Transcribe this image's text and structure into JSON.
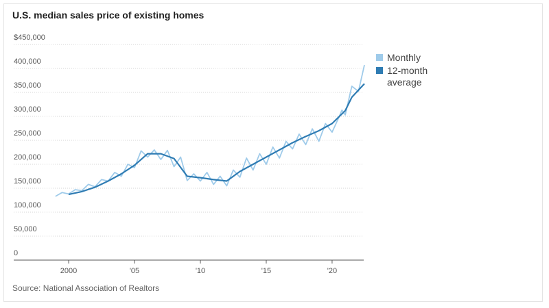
{
  "chart_data": {
    "type": "line",
    "title": "U.S. median sales price of existing homes",
    "source": "Source: National Association of Realtors",
    "series": [
      {
        "name": "Monthly",
        "color": "#9fcbea",
        "x": [
          1999.0,
          1999.5,
          2000.0,
          2000.5,
          2001.0,
          2001.5,
          2002.0,
          2002.5,
          2003.0,
          2003.5,
          2004.0,
          2004.5,
          2005.0,
          2005.5,
          2006.0,
          2006.5,
          2007.0,
          2007.5,
          2008.0,
          2008.5,
          2009.0,
          2009.5,
          2010.0,
          2010.5,
          2011.0,
          2011.5,
          2012.0,
          2012.5,
          2013.0,
          2013.5,
          2014.0,
          2014.5,
          2015.0,
          2015.5,
          2016.0,
          2016.5,
          2017.0,
          2017.5,
          2018.0,
          2018.5,
          2019.0,
          2019.5,
          2020.0,
          2020.5,
          2020.75,
          2021.0,
          2021.5,
          2022.0,
          2022.45
        ],
        "values": [
          133000,
          141000,
          138000,
          147000,
          145000,
          158000,
          153000,
          168000,
          165000,
          183000,
          175000,
          200000,
          193000,
          228000,
          215000,
          230000,
          210000,
          229000,
          195000,
          215000,
          166000,
          180000,
          165000,
          183000,
          158000,
          175000,
          155000,
          188000,
          173000,
          213000,
          188000,
          222000,
          200000,
          236000,
          213000,
          248000,
          232000,
          263000,
          241000,
          274000,
          248000,
          285000,
          267000,
          297000,
          313000,
          303000,
          363000,
          352000,
          407000
        ]
      },
      {
        "name": "12-month average",
        "color": "#2f7cb3",
        "x": [
          2000.0,
          2001.0,
          2002.0,
          2003.0,
          2004.0,
          2005.0,
          2006.0,
          2007.0,
          2008.0,
          2009.0,
          2010.0,
          2011.0,
          2012.0,
          2013.0,
          2014.0,
          2015.0,
          2016.0,
          2017.0,
          2018.0,
          2019.0,
          2020.0,
          2021.0,
          2021.5,
          2022.45
        ],
        "values": [
          137000,
          143000,
          152000,
          165000,
          180000,
          198000,
          222000,
          222000,
          212000,
          175000,
          172000,
          168000,
          165000,
          185000,
          200000,
          215000,
          230000,
          245000,
          258000,
          270000,
          285000,
          312000,
          340000,
          368000
        ]
      }
    ],
    "xlim": [
      1995.83,
      2022.4
    ],
    "xticks": [
      2000,
      {
        "value": 2005,
        "label": "'05"
      },
      {
        "value": 2010,
        "label": "'10"
      },
      {
        "value": 2015,
        "label": "'15"
      },
      {
        "value": 2020,
        "label": "'20"
      }
    ],
    "ylim": [
      0,
      450000
    ],
    "yticks": [
      {
        "value": 0,
        "label": "0"
      },
      {
        "value": 50000,
        "label": "50,000"
      },
      {
        "value": 100000,
        "label": "100,000"
      },
      {
        "value": 150000,
        "label": "150,000"
      },
      {
        "value": 200000,
        "label": "200,000"
      },
      {
        "value": 250000,
        "label": "250,000"
      },
      {
        "value": 300000,
        "label": "300,000"
      },
      {
        "value": 350000,
        "label": "350,000"
      },
      {
        "value": 400000,
        "label": "400,000"
      },
      {
        "value": 450000,
        "label": "$450,000"
      }
    ],
    "grid": true
  }
}
